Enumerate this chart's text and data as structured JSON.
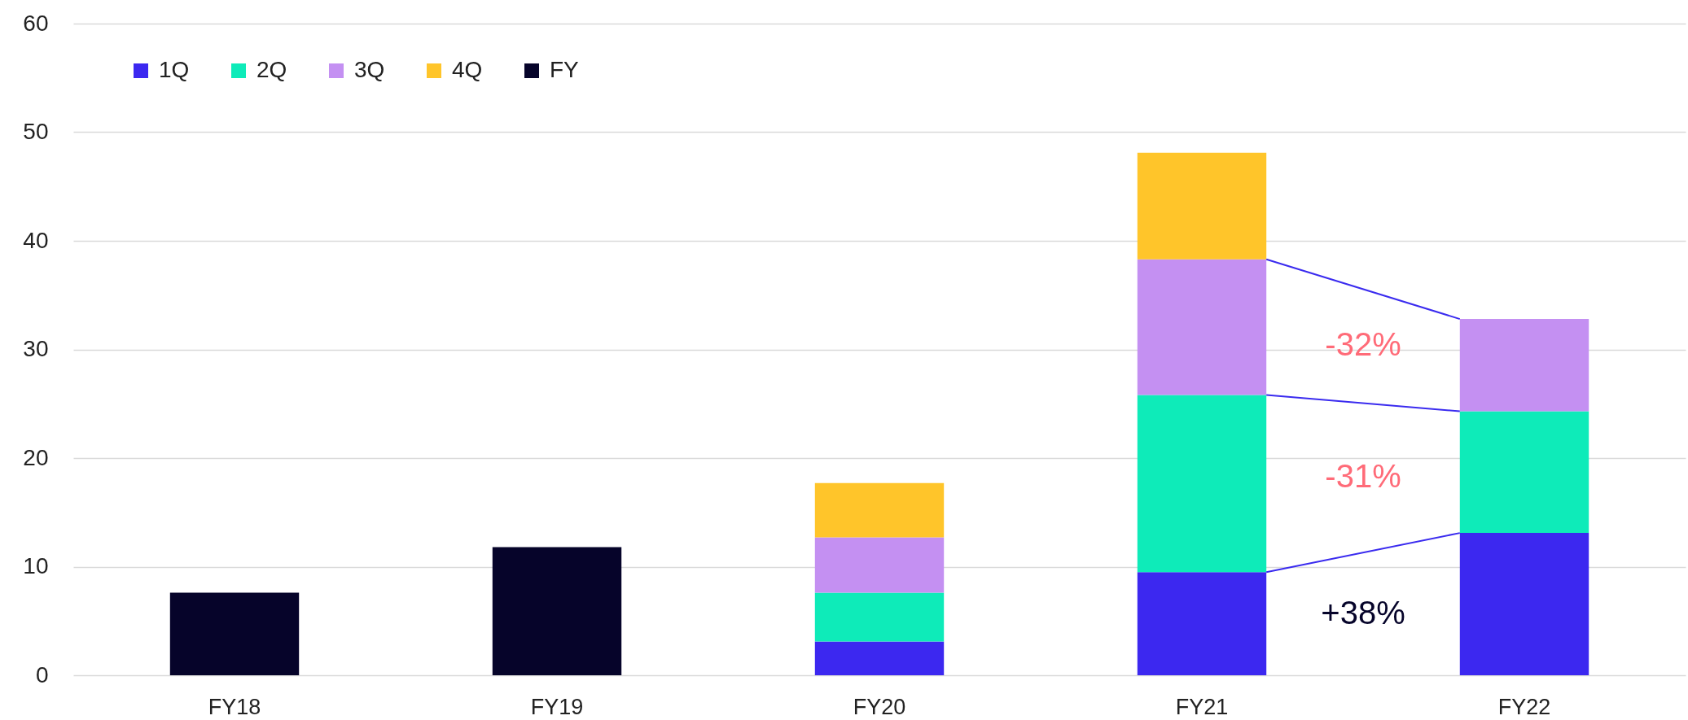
{
  "chart_data": {
    "type": "bar",
    "categories": [
      "FY18",
      "FY19",
      "FY20",
      "FY21",
      "FY22"
    ],
    "series": [
      {
        "name": "1Q",
        "color": "#3c28f0",
        "values": [
          null,
          null,
          3.1,
          9.5,
          13.1
        ]
      },
      {
        "name": "2Q",
        "color": "#0eebb9",
        "values": [
          null,
          null,
          4.5,
          16.3,
          11.2
        ]
      },
      {
        "name": "3Q",
        "color": "#c490f2",
        "values": [
          null,
          null,
          5.1,
          12.5,
          8.5
        ]
      },
      {
        "name": "4Q",
        "color": "#ffc52a",
        "values": [
          null,
          null,
          5.0,
          9.8,
          null
        ]
      },
      {
        "name": "FY",
        "color": "#06042a",
        "values": [
          7.6,
          11.8,
          null,
          null,
          null
        ]
      }
    ],
    "stacked": true,
    "ylim": [
      0,
      60
    ],
    "yticks": [
      0,
      10,
      20,
      30,
      40,
      50,
      60
    ],
    "grid": "y",
    "legend": "top left",
    "annotations": [
      "-32%",
      "-31%",
      "+38%"
    ]
  }
}
